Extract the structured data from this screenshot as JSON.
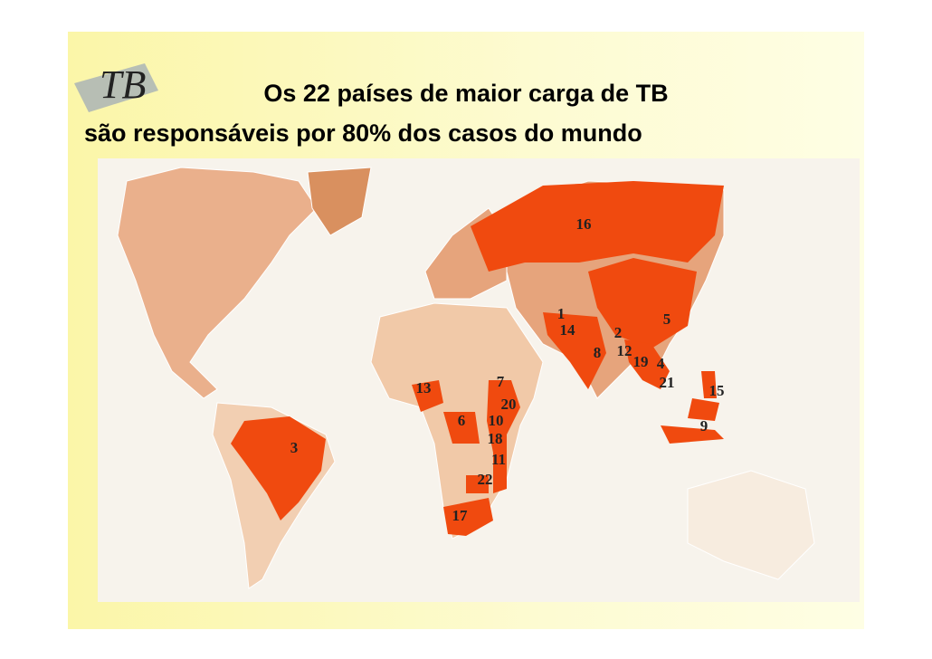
{
  "logo": "TB",
  "title": {
    "line1": "Os 22 países de maior carga de TB",
    "line2": "são responsáveis por 80% dos casos do mundo"
  },
  "map": {
    "country_labels": [
      "16",
      "1",
      "14",
      "5",
      "2",
      "8",
      "12",
      "19",
      "4",
      "21",
      "15",
      "9",
      "7",
      "20",
      "13",
      "6",
      "10",
      "18",
      "11",
      "22",
      "17",
      "3"
    ]
  }
}
